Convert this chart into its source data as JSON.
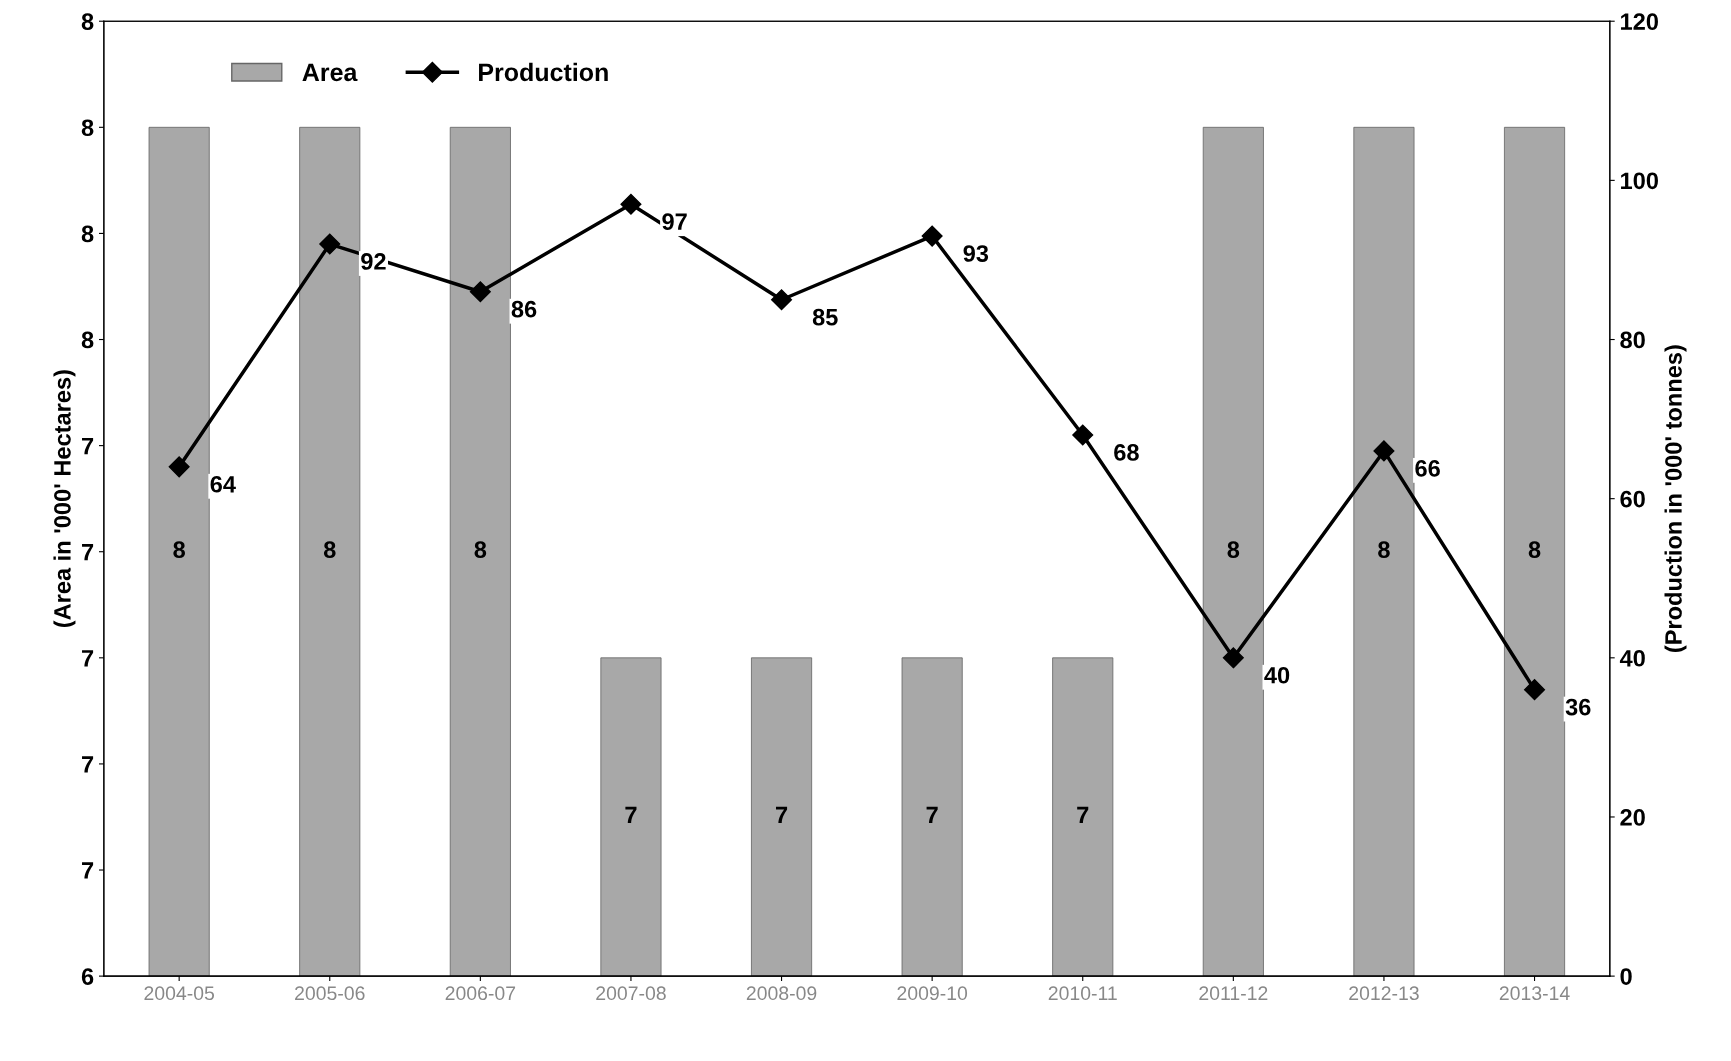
{
  "chart_data": {
    "type": "bar",
    "ylabel": "(Area in '000' Hectares)",
    "y2label": "(Production in '000' tonnes)",
    "categories": [
      "2004-05",
      "2005-06",
      "2006-07",
      "2007-08",
      "2008-09",
      "2009-10",
      "2010-11",
      "2011-12",
      "2012-13",
      "2013-14"
    ],
    "series": [
      {
        "name": "Area",
        "color": "#a8a8a8",
        "values": [
          8.0,
          8.0,
          8.0,
          7.0,
          7.0,
          7.0,
          7.0,
          8.0,
          8.0,
          8.0
        ],
        "value_labels": [
          "8",
          "8",
          "8",
          "7",
          "7",
          "7",
          "7",
          "8",
          "8",
          "8"
        ]
      },
      {
        "name": "Production",
        "type": "line",
        "axis": "y2",
        "color": "#000000",
        "marker": "diamond",
        "line_style": "solid",
        "values": [
          64,
          92,
          86,
          97,
          85,
          93,
          68,
          40,
          66,
          36
        ],
        "data_labels": true
      }
    ],
    "ylim": [
      6.4,
      8.2
    ],
    "yticks": [
      {
        "value": 6.4,
        "label": "6"
      },
      {
        "value": 6.6,
        "label": "7"
      },
      {
        "value": 6.8,
        "label": "7"
      },
      {
        "value": 7.0,
        "label": "7"
      },
      {
        "value": 7.2,
        "label": "7"
      },
      {
        "value": 7.4,
        "label": "7"
      },
      {
        "value": 7.6,
        "label": "8"
      },
      {
        "value": 7.8,
        "label": "8"
      },
      {
        "value": 8.0,
        "label": "8"
      },
      {
        "value": 8.2,
        "label": "8"
      }
    ],
    "y2lim": [
      0,
      120
    ],
    "y2ticks": [
      0,
      20,
      40,
      60,
      80,
      100,
      120
    ],
    "legend": "top left",
    "grid": false
  }
}
